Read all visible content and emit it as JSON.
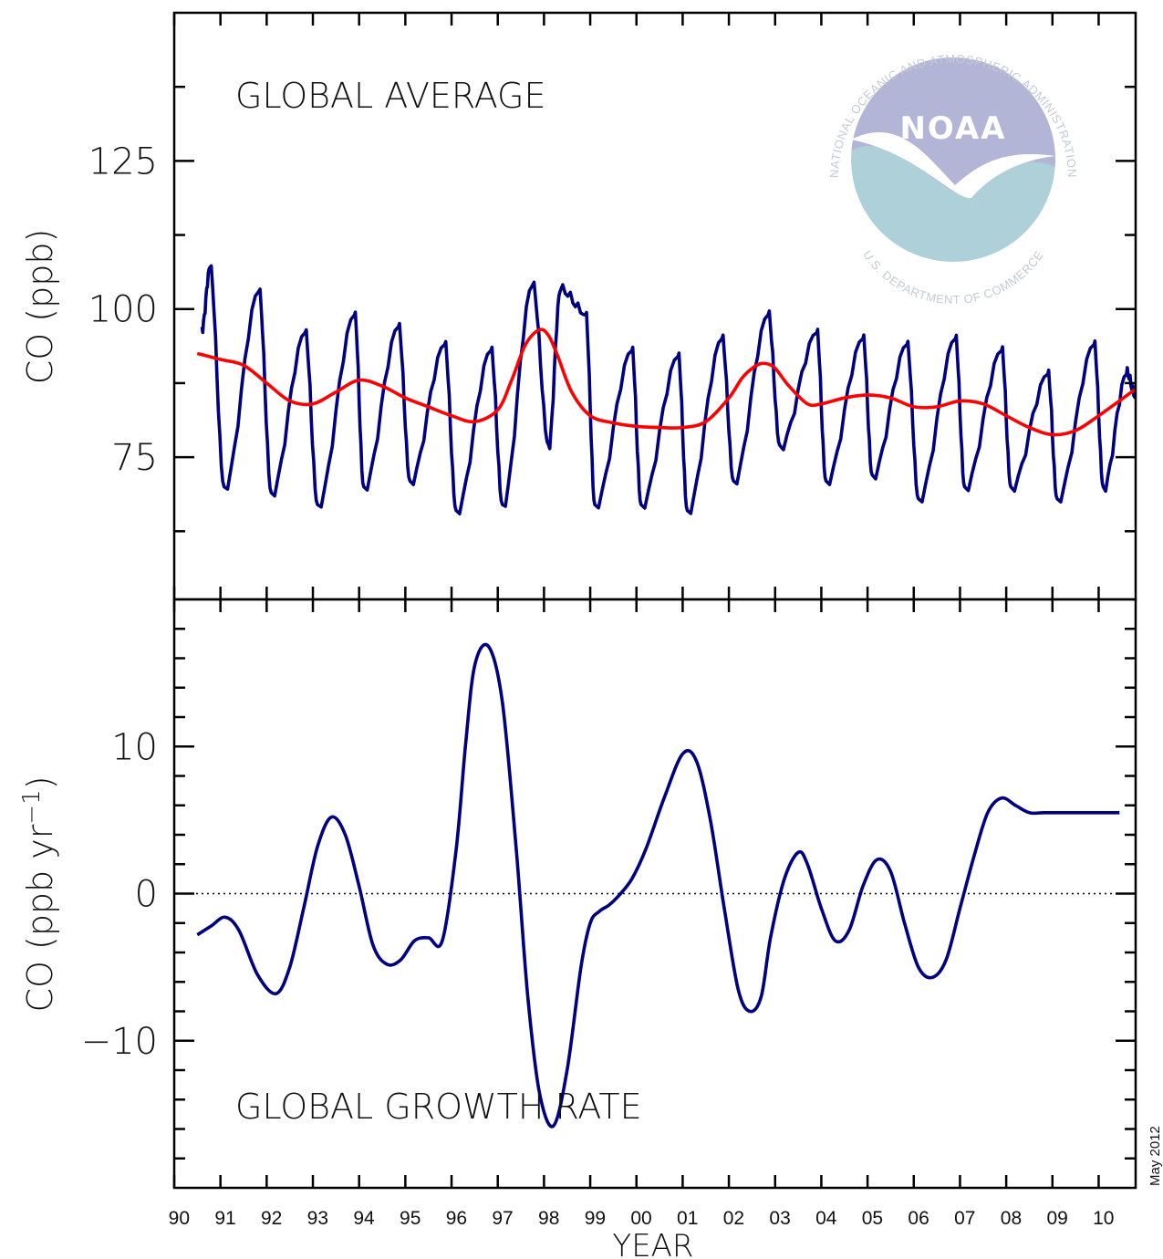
{
  "figure": {
    "date_stamp": "May 2012",
    "x_axis_title": "YEAR",
    "x_tick_labels": [
      "90",
      "91",
      "92",
      "93",
      "94",
      "95",
      "96",
      "97",
      "98",
      "99",
      "00",
      "01",
      "02",
      "03",
      "04",
      "05",
      "06",
      "07",
      "08",
      "09",
      "10"
    ]
  },
  "logo": {
    "name": "noaa-logo",
    "wordmark": "NOAA",
    "ring_text_top": "NATIONAL OCEANIC AND ATMOSPHERIC ADMINISTRATION",
    "ring_text_bottom": "U.S. DEPARTMENT OF COMMERCE",
    "colors": {
      "sky": "#b3b5d6",
      "sea": "#aed1d9",
      "ring_text": "#c5cad6"
    }
  },
  "colors": {
    "series_monthly": "#000080",
    "series_trend": "#ff0000",
    "growth_rate": "#000080",
    "axes": "#000000"
  },
  "chart_data": [
    {
      "type": "line",
      "panel_label": "GLOBAL AVERAGE",
      "ylabel": "CO (ppb)",
      "xlabel": "",
      "xlim": [
        1990,
        2010.8
      ],
      "ylim": [
        51,
        150
      ],
      "y_ticks": [
        75,
        100,
        125
      ],
      "y_minor_step": 12.5,
      "grid": false,
      "series": [
        {
          "kind": "monthly_global_mean",
          "color": "#000080",
          "seasonal_cycle": {
            "start_year": 1990.5,
            "end_year": 2010.8,
            "peak_fraction_of_year": 0.3,
            "minima": [
              [
                1990.6,
                97
              ],
              [
                1991.08,
                70
              ],
              [
                1992.1,
                69
              ],
              [
                1993.1,
                67
              ],
              [
                1994.1,
                70
              ],
              [
                1995.1,
                71
              ],
              [
                1996.1,
                66
              ],
              [
                1997.1,
                67
              ],
              [
                1998.1,
                77
              ],
              [
                1999.1,
                67
              ],
              [
                2000.1,
                67
              ],
              [
                2001.1,
                66
              ],
              [
                2002.1,
                71
              ],
              [
                2003.1,
                77
              ],
              [
                2004.1,
                71
              ],
              [
                2005.1,
                72
              ],
              [
                2006.1,
                68
              ],
              [
                2007.1,
                70
              ],
              [
                2008.1,
                70
              ],
              [
                2009.1,
                68
              ],
              [
                2010.1,
                70
              ],
              [
                2010.8,
                85
              ]
            ],
            "maxima": [
              [
                1990.77,
                107
              ],
              [
                1991.83,
                103
              ],
              [
                1992.83,
                96
              ],
              [
                1993.9,
                99
              ],
              [
                1994.85,
                97
              ],
              [
                1995.85,
                94
              ],
              [
                1996.85,
                93
              ],
              [
                1997.75,
                104
              ],
              [
                1998.35,
                103
              ],
              [
                1998.9,
                99
              ],
              [
                1999.9,
                93
              ],
              [
                2000.9,
                92
              ],
              [
                2001.85,
                95
              ],
              [
                2002.85,
                99
              ],
              [
                2003.9,
                96
              ],
              [
                2004.9,
                95
              ],
              [
                2005.85,
                94
              ],
              [
                2006.9,
                95
              ],
              [
                2007.9,
                93
              ],
              [
                2008.9,
                89
              ],
              [
                2009.9,
                94
              ],
              [
                2010.6,
                89
              ]
            ]
          }
        },
        {
          "kind": "deseasonalized_trend",
          "color": "#ff0000",
          "x": [
            1990.5,
            1991.0,
            1991.5,
            1992.0,
            1992.5,
            1993.0,
            1993.5,
            1994.0,
            1994.5,
            1995.0,
            1995.5,
            1996.0,
            1996.5,
            1997.0,
            1997.3,
            1997.6,
            1997.9,
            1998.1,
            1998.3,
            1998.6,
            1999.0,
            1999.5,
            2000.0,
            2000.5,
            2001.0,
            2001.5,
            2002.0,
            2002.3,
            2002.6,
            2002.8,
            2003.0,
            2003.3,
            2003.7,
            2004.0,
            2004.5,
            2005.0,
            2005.5,
            2006.0,
            2006.5,
            2007.0,
            2007.5,
            2008.0,
            2008.5,
            2009.0,
            2009.5,
            2010.0,
            2010.8
          ],
          "values": [
            92.5,
            91.5,
            90.5,
            87.5,
            84.5,
            84.0,
            86.0,
            88.0,
            87.0,
            85.0,
            83.5,
            82.0,
            81.0,
            83.0,
            88.0,
            94.0,
            96.5,
            95.5,
            92.0,
            86.0,
            82.0,
            80.8,
            80.2,
            80.0,
            80.0,
            81.0,
            85.0,
            88.5,
            90.5,
            90.8,
            90.0,
            87.0,
            84.0,
            84.0,
            85.0,
            85.5,
            85.0,
            83.5,
            83.5,
            84.5,
            84.0,
            82.0,
            80.0,
            78.8,
            79.5,
            82.0,
            86.5
          ]
        }
      ]
    },
    {
      "type": "line",
      "panel_label": "GLOBAL GROWTH RATE",
      "ylabel": "CO (ppb yr",
      "ylabel_superscript": "−1",
      "ylabel_suffix": ")",
      "xlabel": "YEAR",
      "xlim": [
        1990,
        2010.8
      ],
      "ylim": [
        -20,
        20
      ],
      "y_ticks": [
        10,
        0,
        -10
      ],
      "y_tick_labels": [
        "10",
        "0",
        "−10"
      ],
      "y_minor_step": 2,
      "zero_line": "dotted",
      "grid": false,
      "series": [
        {
          "color": "#000080",
          "x": [
            1990.5,
            1990.8,
            1991.1,
            1991.4,
            1991.8,
            1992.2,
            1992.5,
            1992.8,
            1993.1,
            1993.4,
            1993.7,
            1994.0,
            1994.3,
            1994.6,
            1994.9,
            1995.2,
            1995.5,
            1995.8,
            1996.1,
            1996.3,
            1996.5,
            1996.8,
            1997.1,
            1997.4,
            1997.65,
            1997.9,
            1998.2,
            1998.5,
            1998.8,
            1999.0,
            1999.2,
            1999.4,
            1999.6,
            1999.9,
            2000.2,
            2000.6,
            2001.0,
            2001.3,
            2001.6,
            2001.9,
            2002.2,
            2002.45,
            2002.7,
            2002.9,
            2003.2,
            2003.5,
            2003.7,
            2004.0,
            2004.3,
            2004.6,
            2004.9,
            2005.2,
            2005.5,
            2005.8,
            2006.1,
            2006.4,
            2006.7,
            2007.0,
            2007.3,
            2007.6,
            2007.9,
            2008.2,
            2008.5,
            2008.8,
            2009.1,
            2009.4,
            2009.7,
            2009.95,
            2010.2,
            2010.45
          ],
          "values": [
            -2.8,
            -2.2,
            -1.6,
            -2.5,
            -5.5,
            -6.8,
            -5.0,
            -1.0,
            3.2,
            5.2,
            4.0,
            0.5,
            -3.5,
            -4.8,
            -4.5,
            -3.2,
            -3.0,
            -3.2,
            3.0,
            10.0,
            15.5,
            16.8,
            13.0,
            3.0,
            -7.0,
            -13.5,
            -15.8,
            -12.0,
            -5.0,
            -2.0,
            -1.2,
            -0.8,
            -0.2,
            1.0,
            3.0,
            6.5,
            9.5,
            9.0,
            5.0,
            -1.0,
            -6.5,
            -8.0,
            -7.0,
            -3.0,
            1.0,
            2.8,
            2.0,
            -1.0,
            -3.2,
            -2.5,
            0.5,
            2.3,
            1.5,
            -2.0,
            -5.0,
            -5.7,
            -4.5,
            -1.0,
            2.5,
            5.5,
            6.5,
            6.0,
            5.5,
            5.5,
            5.5,
            5.5,
            5.5,
            5.5,
            5.5,
            5.5
          ]
        }
      ]
    }
  ]
}
